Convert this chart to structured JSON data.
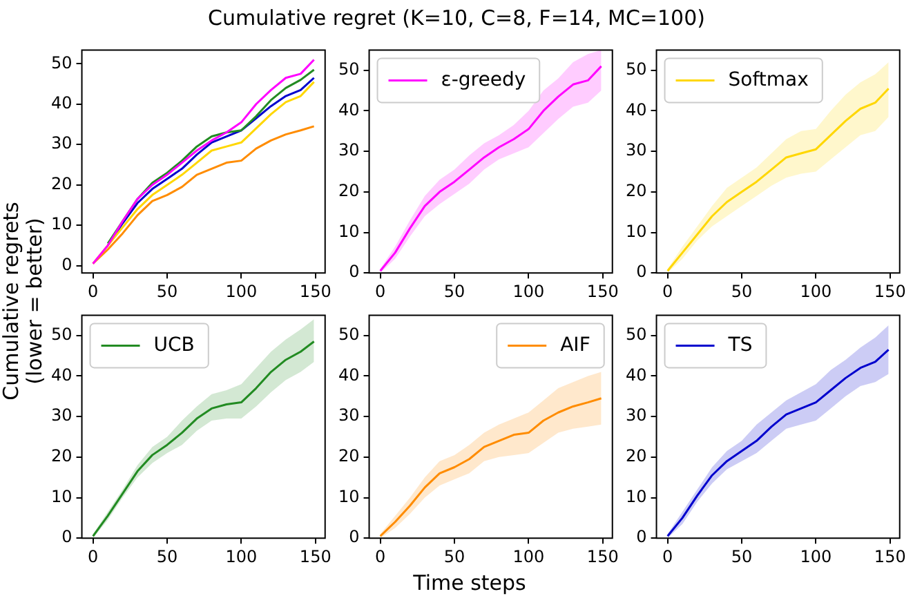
{
  "chart_data": [
    {
      "type": "line",
      "title": "Cumulative regret (K=10, C=8, F=14, MC=100)",
      "x": [
        0,
        10,
        20,
        30,
        40,
        50,
        60,
        70,
        80,
        90,
        100,
        110,
        120,
        130,
        140,
        149
      ],
      "xlim": [
        -7.5,
        156.5
      ],
      "xticks": [
        0,
        50,
        100,
        150
      ],
      "ylim": [
        -1.8,
        53.4
      ],
      "yticks": [
        0,
        10,
        20,
        30,
        40,
        50
      ],
      "legend": false,
      "series": [
        {
          "color": "#ff00ff",
          "values": [
            0.5,
            5,
            11,
            16.5,
            20,
            22.5,
            25.5,
            28.5,
            31,
            33,
            35.5,
            40,
            43.5,
            46.5,
            47.5,
            51
          ]
        },
        {
          "color": "#ffd700",
          "values": [
            0.5,
            5,
            9.5,
            14,
            17.5,
            20,
            22.5,
            25.5,
            28.5,
            29.5,
            30.5,
            34,
            37.5,
            40.5,
            42,
            45.5
          ]
        },
        {
          "color": "#228b22",
          "values": [
            null,
            5.5,
            11,
            16.5,
            20.5,
            23,
            26,
            29.5,
            32,
            33,
            33.5,
            37,
            41,
            44,
            46,
            48.5
          ]
        },
        {
          "color": "#ff8c00",
          "values": [
            0.5,
            4,
            8,
            12.5,
            16,
            17.5,
            19.5,
            22.5,
            24,
            25.5,
            26,
            29,
            31,
            32.5,
            33.5,
            34.5
          ]
        },
        {
          "color": "#0000cd",
          "values": [
            null,
            5,
            10.5,
            15.5,
            19,
            21.5,
            24,
            27.5,
            30.5,
            32,
            33.5,
            36.5,
            39.5,
            42,
            43.5,
            46.5
          ]
        }
      ]
    },
    {
      "type": "line",
      "x": [
        0,
        10,
        20,
        30,
        40,
        50,
        60,
        70,
        80,
        90,
        100,
        110,
        120,
        130,
        140,
        149
      ],
      "xlim": [
        -7.5,
        156.5
      ],
      "xticks": [
        0,
        50,
        100,
        150
      ],
      "ylim": [
        0,
        55
      ],
      "yticks": [
        0,
        10,
        20,
        30,
        40,
        50
      ],
      "legend": "top left",
      "series": [
        {
          "name": "ε-greedy",
          "color": "#ff00ff",
          "values": [
            0.5,
            5,
            11,
            16.5,
            20,
            22.5,
            25.5,
            28.5,
            31,
            33,
            35.5,
            40,
            43.5,
            46.5,
            47.5,
            51
          ],
          "lower": [
            0,
            3.5,
            9,
            14,
            17,
            19.5,
            22,
            25.5,
            28,
            29.5,
            31,
            34.5,
            38,
            41,
            42,
            45
          ],
          "upper": [
            1,
            6.5,
            13,
            19,
            23,
            25.5,
            29,
            32,
            34,
            36.5,
            40,
            45,
            48,
            52,
            54,
            55
          ]
        }
      ]
    },
    {
      "type": "line",
      "x": [
        0,
        10,
        20,
        30,
        40,
        50,
        60,
        70,
        80,
        90,
        100,
        110,
        120,
        130,
        140,
        149
      ],
      "xlim": [
        -7.5,
        156.5
      ],
      "xticks": [
        0,
        50,
        100,
        150
      ],
      "ylim": [
        0,
        55
      ],
      "yticks": [
        0,
        10,
        20,
        30,
        40,
        50
      ],
      "legend": "top left",
      "series": [
        {
          "name": "Softmax",
          "color": "#ffd700",
          "values": [
            0.5,
            5,
            9.5,
            14,
            17.5,
            20,
            22.5,
            25.5,
            28.5,
            29.5,
            30.5,
            34,
            37.5,
            40.5,
            42,
            45.5
          ],
          "lower": [
            0,
            3.5,
            8,
            11.5,
            14,
            16.5,
            19,
            21.5,
            23.5,
            24.5,
            25,
            28,
            31,
            34,
            35,
            38.5
          ],
          "upper": [
            1,
            6.5,
            11.5,
            16.5,
            21,
            23.5,
            26,
            29.5,
            33,
            35,
            35.5,
            40,
            44,
            47,
            49,
            52
          ]
        }
      ]
    },
    {
      "type": "line",
      "ylabel": "Cumulative regrets\n(lower = better)",
      "x": [
        0,
        10,
        20,
        30,
        40,
        50,
        60,
        70,
        80,
        90,
        100,
        110,
        120,
        130,
        140,
        149
      ],
      "xlim": [
        -7.5,
        156.5
      ],
      "xticks": [
        0,
        50,
        100,
        150
      ],
      "ylim": [
        0,
        55
      ],
      "yticks": [
        0,
        10,
        20,
        30,
        40,
        50
      ],
      "legend": "top left",
      "series": [
        {
          "name": "UCB",
          "color": "#228b22",
          "values": [
            0.5,
            5.5,
            11,
            16.5,
            20.5,
            23,
            26,
            29.5,
            32,
            33,
            33.5,
            37,
            41,
            44,
            46,
            48.5
          ],
          "lower": [
            0,
            4.5,
            10,
            15,
            18.5,
            21,
            23,
            26.5,
            29,
            29.5,
            29.5,
            32.5,
            36,
            39,
            41,
            43.5
          ],
          "upper": [
            1,
            6.5,
            12,
            18,
            22.5,
            25,
            29,
            32.5,
            35.5,
            36.5,
            38,
            42,
            46,
            49,
            51.5,
            54
          ]
        }
      ]
    },
    {
      "type": "line",
      "xlabel": "Time steps",
      "x": [
        0,
        10,
        20,
        30,
        40,
        50,
        60,
        70,
        80,
        90,
        100,
        110,
        120,
        130,
        140,
        149
      ],
      "xlim": [
        -7.5,
        156.5
      ],
      "xticks": [
        0,
        50,
        100,
        150
      ],
      "ylim": [
        0,
        55
      ],
      "yticks": [
        0,
        10,
        20,
        30,
        40,
        50
      ],
      "legend": "top right",
      "series": [
        {
          "name": "AIF",
          "color": "#ff8c00",
          "values": [
            0.5,
            4,
            8,
            12.5,
            16,
            17.5,
            19.5,
            22.5,
            24,
            25.5,
            26,
            29,
            31,
            32.5,
            33.5,
            34.5
          ],
          "lower": [
            0,
            2.5,
            6,
            10,
            13,
            14.5,
            16,
            19,
            20,
            20.5,
            21,
            23.5,
            26,
            27,
            27.5,
            28
          ],
          "upper": [
            1,
            5.5,
            10,
            15,
            19,
            20.5,
            23,
            26,
            28,
            29.5,
            31,
            34,
            37,
            38.5,
            40,
            41
          ]
        }
      ]
    },
    {
      "type": "line",
      "x": [
        0,
        10,
        20,
        30,
        40,
        50,
        60,
        70,
        80,
        90,
        100,
        110,
        120,
        130,
        140,
        149
      ],
      "xlim": [
        -7.5,
        156.5
      ],
      "xticks": [
        0,
        50,
        100,
        150
      ],
      "ylim": [
        0,
        55
      ],
      "yticks": [
        0,
        10,
        20,
        30,
        40,
        50
      ],
      "legend": "top left",
      "series": [
        {
          "name": "TS",
          "color": "#0000cd",
          "values": [
            0.5,
            5,
            10.5,
            15.5,
            19,
            21.5,
            24,
            27.5,
            30.5,
            32,
            33.5,
            36.5,
            39.5,
            42,
            43.5,
            46.5
          ],
          "lower": [
            0,
            3.5,
            9,
            13.5,
            17,
            19,
            21,
            24,
            27,
            28,
            29,
            32,
            35,
            37.5,
            38.5,
            40.5
          ],
          "upper": [
            1,
            6.5,
            12,
            17.5,
            21.5,
            24,
            28,
            31,
            34,
            36,
            38,
            41.5,
            44,
            47,
            49.5,
            52.5
          ]
        }
      ]
    }
  ]
}
